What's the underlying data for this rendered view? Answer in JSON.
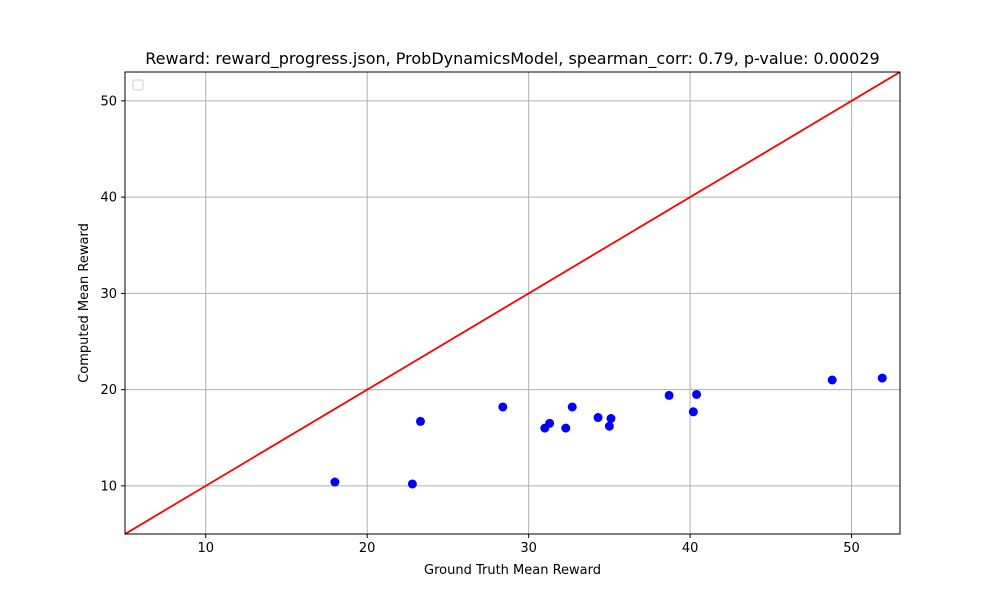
{
  "chart_data": {
    "type": "scatter",
    "title": "Reward: reward_progress.json, ProbDynamicsModel, spearman_corr: 0.79, p-value: 0.00029",
    "xlabel": "Ground Truth Mean Reward",
    "ylabel": "Computed Mean Reward",
    "xlim": [
      5,
      53
    ],
    "ylim": [
      5,
      53
    ],
    "xticks": [
      "10",
      "20",
      "30",
      "40",
      "50"
    ],
    "yticks": [
      "10",
      "20",
      "30",
      "40",
      "50"
    ],
    "grid": true,
    "legend": "top-left (empty)",
    "series": [
      {
        "type": "scatter",
        "color": "#0000ff",
        "points": [
          {
            "x": 18.0,
            "y": 10.4
          },
          {
            "x": 22.8,
            "y": 10.2
          },
          {
            "x": 23.3,
            "y": 16.7
          },
          {
            "x": 28.4,
            "y": 18.2
          },
          {
            "x": 31.0,
            "y": 16.0
          },
          {
            "x": 31.3,
            "y": 16.5
          },
          {
            "x": 32.3,
            "y": 16.0
          },
          {
            "x": 32.7,
            "y": 18.2
          },
          {
            "x": 34.3,
            "y": 17.1
          },
          {
            "x": 35.0,
            "y": 16.2
          },
          {
            "x": 35.1,
            "y": 17.0
          },
          {
            "x": 38.7,
            "y": 19.4
          },
          {
            "x": 40.2,
            "y": 17.7
          },
          {
            "x": 40.4,
            "y": 19.5
          },
          {
            "x": 48.8,
            "y": 21.0
          },
          {
            "x": 51.9,
            "y": 21.2
          }
        ]
      },
      {
        "type": "line",
        "color": "#ff0000",
        "points": [
          {
            "x": 5,
            "y": 5
          },
          {
            "x": 53,
            "y": 53
          }
        ]
      }
    ]
  }
}
